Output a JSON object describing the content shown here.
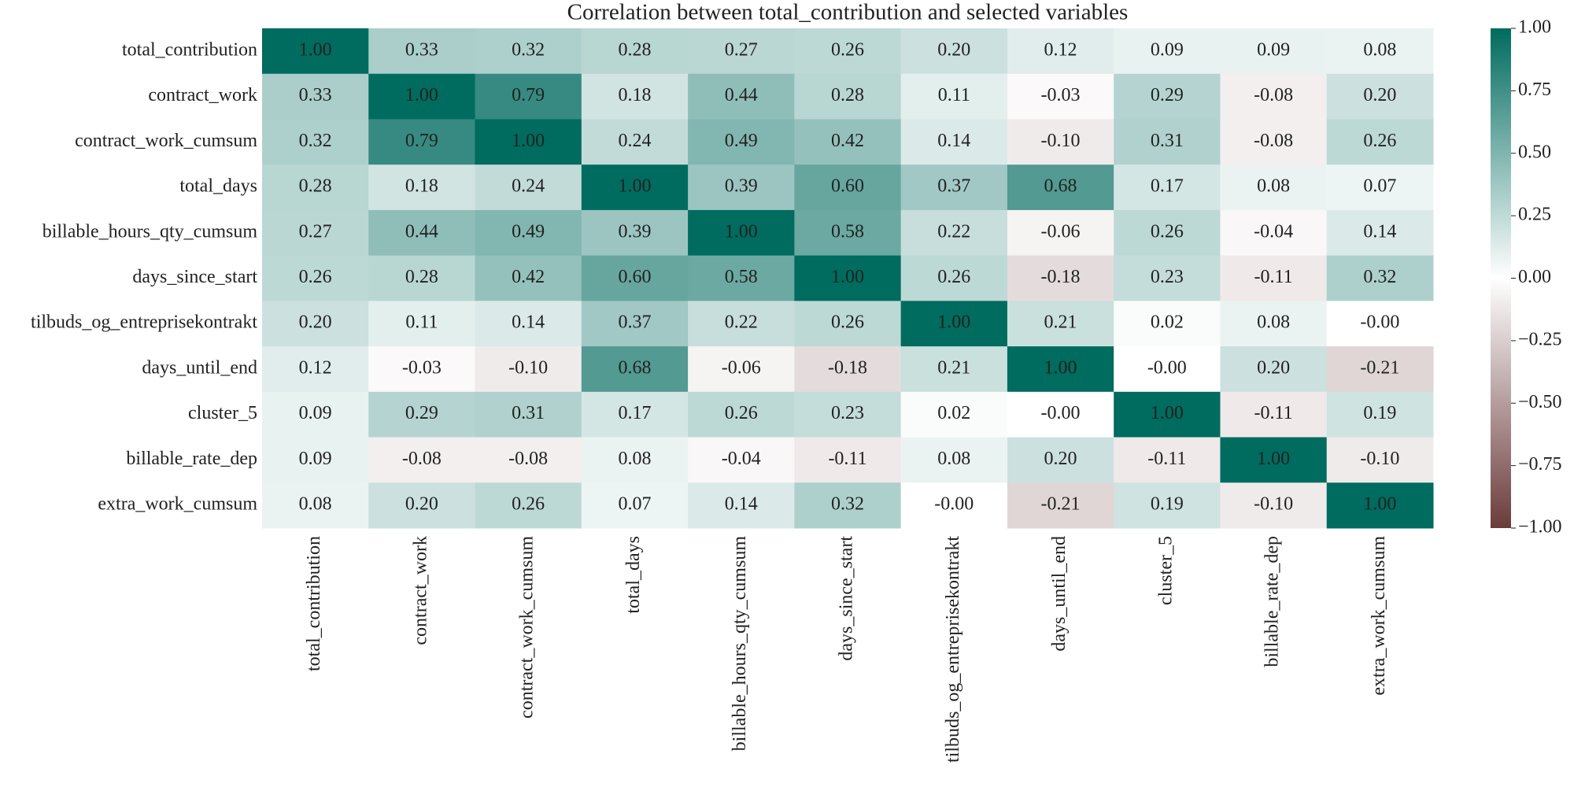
{
  "chart_data": {
    "type": "heatmap",
    "title": "Correlation between total_contribution and selected variables",
    "x_categories": [
      "total_contribution",
      "contract_work",
      "contract_work_cumsum",
      "total_days",
      "billable_hours_qty_cumsum",
      "days_since_start",
      "tilbuds_og_entreprisekontrakt",
      "days_until_end",
      "cluster_5",
      "billable_rate_dep",
      "extra_work_cumsum"
    ],
    "y_categories": [
      "total_contribution",
      "contract_work",
      "contract_work_cumsum",
      "total_days",
      "billable_hours_qty_cumsum",
      "days_since_start",
      "tilbuds_og_entreprisekontrakt",
      "days_until_end",
      "cluster_5",
      "billable_rate_dep",
      "extra_work_cumsum"
    ],
    "values": [
      [
        1,
        0.33,
        0.32,
        0.28,
        0.27,
        0.26,
        0.2,
        0.12,
        0.09,
        0.09,
        0.08
      ],
      [
        0.33,
        1,
        0.79,
        0.18,
        0.44,
        0.28,
        0.11,
        -0.03,
        0.29,
        -0.08,
        0.2
      ],
      [
        0.32,
        0.79,
        1,
        0.24,
        0.49,
        0.42,
        0.14,
        -0.1,
        0.31,
        -0.08,
        0.26
      ],
      [
        0.28,
        0.18,
        0.24,
        1,
        0.39,
        0.6,
        0.37,
        0.68,
        0.17,
        0.08,
        0.07
      ],
      [
        0.27,
        0.44,
        0.49,
        0.39,
        1,
        0.58,
        0.22,
        -0.06,
        0.26,
        -0.04,
        0.14
      ],
      [
        0.26,
        0.28,
        0.42,
        0.6,
        0.58,
        1,
        0.26,
        -0.18,
        0.23,
        -0.11,
        0.32
      ],
      [
        0.2,
        0.11,
        0.14,
        0.37,
        0.22,
        0.26,
        1,
        0.21,
        0.02,
        0.08,
        0
      ],
      [
        0.12,
        -0.03,
        -0.1,
        0.68,
        -0.06,
        -0.18,
        0.21,
        1,
        0,
        0.2,
        -0.21
      ],
      [
        0.09,
        0.29,
        0.31,
        0.17,
        0.26,
        0.23,
        0.02,
        0,
        1,
        -0.11,
        0.19
      ],
      [
        0.09,
        -0.08,
        -0.08,
        0.08,
        -0.04,
        -0.11,
        0.08,
        0.2,
        -0.11,
        1,
        -0.1
      ],
      [
        0.08,
        0.2,
        0.26,
        0.07,
        0.14,
        0.32,
        0,
        -0.21,
        0.19,
        -0.1,
        1
      ]
    ],
    "value_labels": [
      [
        "1.00",
        "0.33",
        "0.32",
        "0.28",
        "0.27",
        "0.26",
        "0.20",
        "0.12",
        "0.09",
        "0.09",
        "0.08"
      ],
      [
        "0.33",
        "1.00",
        "0.79",
        "0.18",
        "0.44",
        "0.28",
        "0.11",
        "-0.03",
        "0.29",
        "-0.08",
        "0.20"
      ],
      [
        "0.32",
        "0.79",
        "1.00",
        "0.24",
        "0.49",
        "0.42",
        "0.14",
        "-0.10",
        "0.31",
        "-0.08",
        "0.26"
      ],
      [
        "0.28",
        "0.18",
        "0.24",
        "1.00",
        "0.39",
        "0.60",
        "0.37",
        "0.68",
        "0.17",
        "0.08",
        "0.07"
      ],
      [
        "0.27",
        "0.44",
        "0.49",
        "0.39",
        "1.00",
        "0.58",
        "0.22",
        "-0.06",
        "0.26",
        "-0.04",
        "0.14"
      ],
      [
        "0.26",
        "0.28",
        "0.42",
        "0.60",
        "0.58",
        "1.00",
        "0.26",
        "-0.18",
        "0.23",
        "-0.11",
        "0.32"
      ],
      [
        "0.20",
        "0.11",
        "0.14",
        "0.37",
        "0.22",
        "0.26",
        "1.00",
        "0.21",
        "0.02",
        "0.08",
        "-0.00"
      ],
      [
        "0.12",
        "-0.03",
        "-0.10",
        "0.68",
        "-0.06",
        "-0.18",
        "0.21",
        "1.00",
        "-0.00",
        "0.20",
        "-0.21"
      ],
      [
        "0.09",
        "0.29",
        "0.31",
        "0.17",
        "0.26",
        "0.23",
        "0.02",
        "-0.00",
        "1.00",
        "-0.11",
        "0.19"
      ],
      [
        "0.09",
        "-0.08",
        "-0.08",
        "0.08",
        "-0.04",
        "-0.11",
        "0.08",
        "0.20",
        "-0.11",
        "1.00",
        "-0.10"
      ],
      [
        "0.08",
        "0.20",
        "0.26",
        "0.07",
        "0.14",
        "0.32",
        "-0.00",
        "-0.21",
        "0.19",
        "-0.10",
        "1.00"
      ]
    ],
    "colormap": [
      "#6b3b3b",
      "#ffffff",
      "#006b5f"
    ],
    "zlim": [
      -1,
      1
    ],
    "zticks": [
      {
        "value": -1,
        "label": "−1.00"
      },
      {
        "value": -0.75,
        "label": "−0.75"
      },
      {
        "value": -0.5,
        "label": "−0.50"
      },
      {
        "value": -0.25,
        "label": "−0.25"
      },
      {
        "value": 0,
        "label": "0.00"
      },
      {
        "value": 0.25,
        "label": "0.25"
      },
      {
        "value": 0.5,
        "label": "0.50"
      },
      {
        "value": 0.75,
        "label": "0.75"
      },
      {
        "value": 1,
        "label": "1.00"
      }
    ]
  }
}
